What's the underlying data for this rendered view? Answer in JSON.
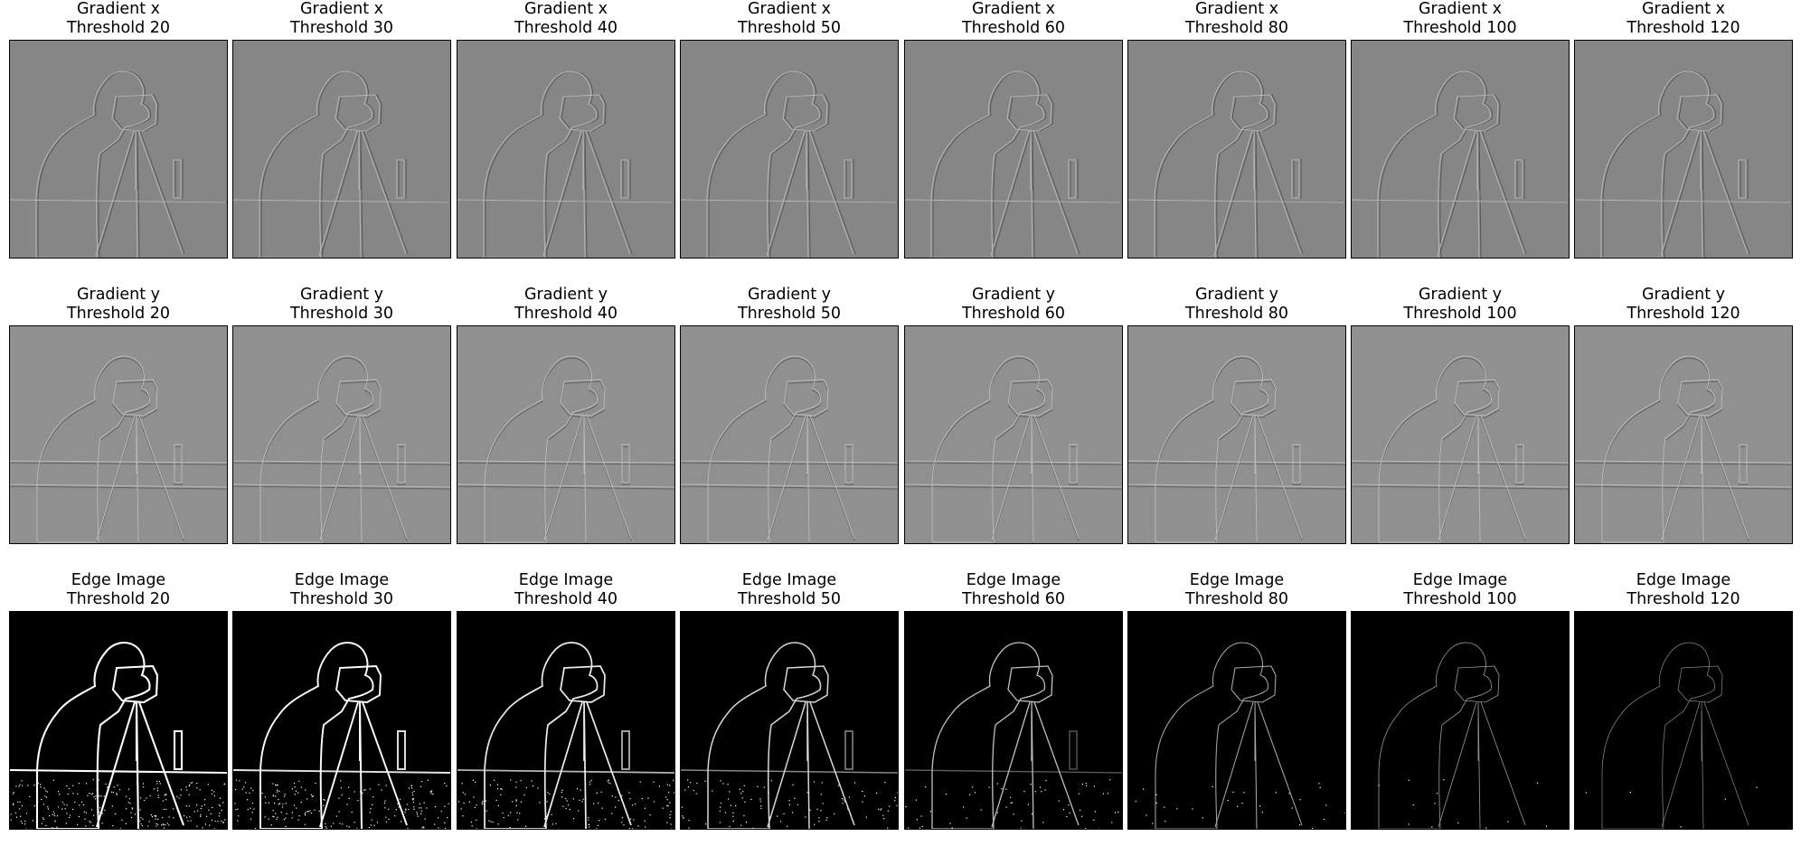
{
  "rows": [
    {
      "name": "gradient-x",
      "label": "Gradient x",
      "background": "#868686",
      "line_light": "#b4b4b4",
      "line_dark": "#5a5a5a",
      "panels": [
        {
          "line1": "Gradient x",
          "line2": "Threshold 20"
        },
        {
          "line1": "Gradient x",
          "line2": "Threshold 30"
        },
        {
          "line1": "Gradient x",
          "line2": "Threshold 40"
        },
        {
          "line1": "Gradient x",
          "line2": "Threshold 50"
        },
        {
          "line1": "Gradient x",
          "line2": "Threshold 60"
        },
        {
          "line1": "Gradient x",
          "line2": "Threshold 80"
        },
        {
          "line1": "Gradient x",
          "line2": "Threshold 100"
        },
        {
          "line1": "Gradient x",
          "line2": "Threshold 120"
        }
      ]
    },
    {
      "name": "gradient-y",
      "label": "Gradient y",
      "background": "#909090",
      "line_light": "#bababa",
      "line_dark": "#636363",
      "panels": [
        {
          "line1": "Gradient y",
          "line2": "Threshold 20"
        },
        {
          "line1": "Gradient y",
          "line2": "Threshold 30"
        },
        {
          "line1": "Gradient y",
          "line2": "Threshold 40"
        },
        {
          "line1": "Gradient y",
          "line2": "Threshold 50"
        },
        {
          "line1": "Gradient y",
          "line2": "Threshold 60"
        },
        {
          "line1": "Gradient y",
          "line2": "Threshold 80"
        },
        {
          "line1": "Gradient y",
          "line2": "Threshold 100"
        },
        {
          "line1": "Gradient y",
          "line2": "Threshold 120"
        }
      ]
    },
    {
      "name": "edge-image",
      "label": "Edge Image",
      "background": "#000000",
      "line_light": "#ffffff",
      "line_dark": "#000000",
      "panels": [
        {
          "line1": "Edge Image",
          "line2": "Threshold 20",
          "edge_density": 1.0
        },
        {
          "line1": "Edge Image",
          "line2": "Threshold 30",
          "edge_density": 0.9
        },
        {
          "line1": "Edge Image",
          "line2": "Threshold 40",
          "edge_density": 0.78
        },
        {
          "line1": "Edge Image",
          "line2": "Threshold 50",
          "edge_density": 0.64
        },
        {
          "line1": "Edge Image",
          "line2": "Threshold 60",
          "edge_density": 0.5
        },
        {
          "line1": "Edge Image",
          "line2": "Threshold 80",
          "edge_density": 0.34
        },
        {
          "line1": "Edge Image",
          "line2": "Threshold 100",
          "edge_density": 0.22
        },
        {
          "line1": "Edge Image",
          "line2": "Threshold 120",
          "edge_density": 0.14
        }
      ]
    }
  ]
}
